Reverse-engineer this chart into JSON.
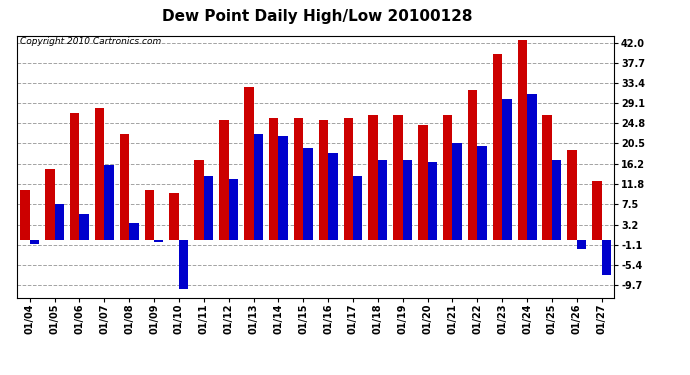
{
  "title": "Dew Point Daily High/Low 20100128",
  "copyright": "Copyright 2010 Cartronics.com",
  "dates": [
    "01/04",
    "01/05",
    "01/06",
    "01/07",
    "01/08",
    "01/09",
    "01/10",
    "01/11",
    "01/12",
    "01/13",
    "01/14",
    "01/15",
    "01/16",
    "01/17",
    "01/18",
    "01/19",
    "01/20",
    "01/21",
    "01/22",
    "01/23",
    "01/24",
    "01/25",
    "01/26",
    "01/27"
  ],
  "highs": [
    10.5,
    15.0,
    27.0,
    28.0,
    22.5,
    10.5,
    10.0,
    17.0,
    25.5,
    32.5,
    26.0,
    26.0,
    25.5,
    26.0,
    26.5,
    26.5,
    24.5,
    26.5,
    32.0,
    39.5,
    42.5,
    26.5,
    19.0,
    12.5
  ],
  "lows": [
    -1.0,
    7.5,
    5.5,
    16.0,
    3.5,
    -0.5,
    -10.5,
    13.5,
    13.0,
    22.5,
    22.0,
    19.5,
    18.5,
    13.5,
    17.0,
    17.0,
    16.5,
    20.5,
    20.0,
    30.0,
    31.0,
    17.0,
    -2.0,
    -7.5
  ],
  "bar_color_high": "#cc0000",
  "bar_color_low": "#0000cc",
  "yticks": [
    -9.7,
    -5.4,
    -1.1,
    3.2,
    7.5,
    11.8,
    16.2,
    20.5,
    24.8,
    29.1,
    33.4,
    37.7,
    42.0
  ],
  "ylim": [
    -12.5,
    43.5
  ],
  "xlim": [
    -0.5,
    23.5
  ],
  "background_color": "#ffffff",
  "grid_color": "#999999",
  "title_fontsize": 11,
  "copyright_fontsize": 6.5,
  "tick_fontsize": 7,
  "bar_width": 0.38
}
